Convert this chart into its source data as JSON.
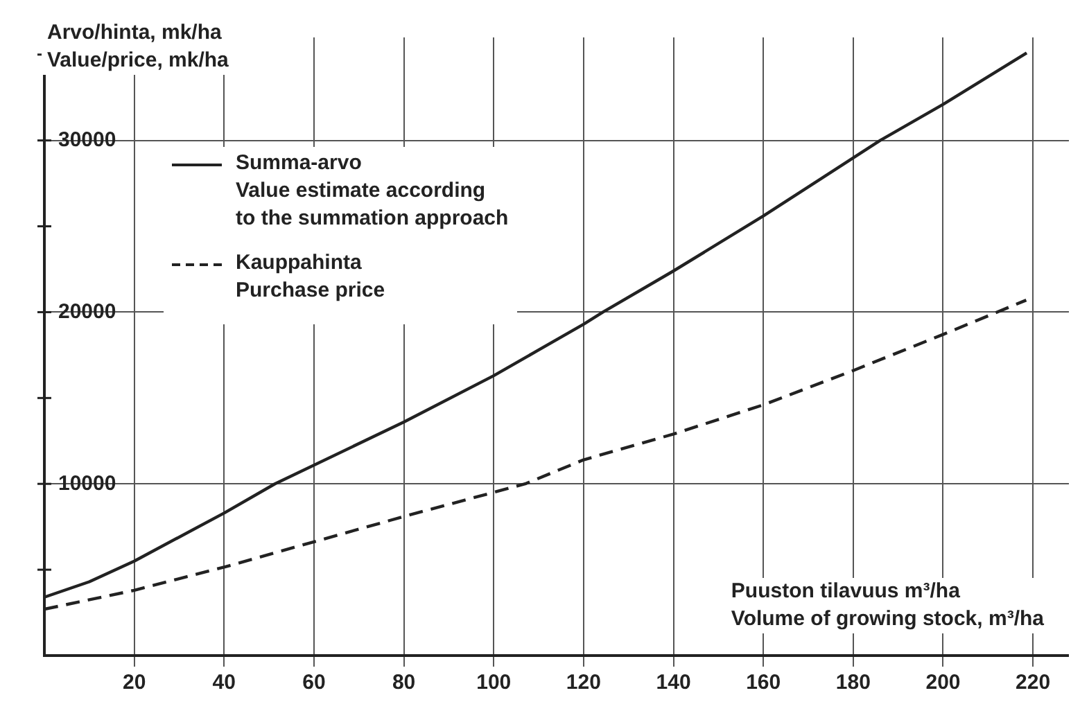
{
  "chart_data": {
    "type": "line",
    "xlabel": "Puuston tilavuus m³/ha\nVolume of growing stock, m³/ha",
    "ylabel": "Arvo/hinta, mk/ha\nValue/price, mk/ha",
    "x": [
      0,
      10,
      20,
      40,
      51.3,
      80,
      100,
      120,
      124.3,
      140,
      160,
      186,
      200,
      218.6
    ],
    "series": [
      {
        "name": "Summa-arvo\nValue estimate according\nto the summation approach",
        "color": "#222222",
        "line_style": "solid",
        "values": [
          3400,
          4300,
          5500,
          8300,
          10000,
          13600,
          16300,
          19300,
          20000,
          22400,
          25600,
          30000,
          32100,
          35100
        ]
      },
      {
        "name": "Kauppahinta\nPurchase price",
        "color": "#222222",
        "line_style": "dashed",
        "x": [
          0,
          20,
          40,
          80,
          107,
          120,
          140,
          160,
          180,
          200,
          218.5
        ],
        "values": [
          2700,
          3800,
          5150,
          8100,
          10000,
          11400,
          12900,
          14600,
          16600,
          18700,
          20700
        ]
      }
    ],
    "xlim": [
      0,
      228
    ],
    "xticks": [
      20,
      40,
      60,
      80,
      100,
      120,
      140,
      160,
      180,
      200,
      220
    ],
    "ylim": [
      0,
      36000
    ],
    "yticks": [
      {
        "value": 5000,
        "label": null
      },
      10000,
      {
        "value": 15000,
        "label": null
      },
      20000,
      {
        "value": 25000,
        "label": null
      },
      30000,
      {
        "value": 35000,
        "label": null
      }
    ],
    "grid": true,
    "legend": "top left",
    "marker": "none"
  }
}
